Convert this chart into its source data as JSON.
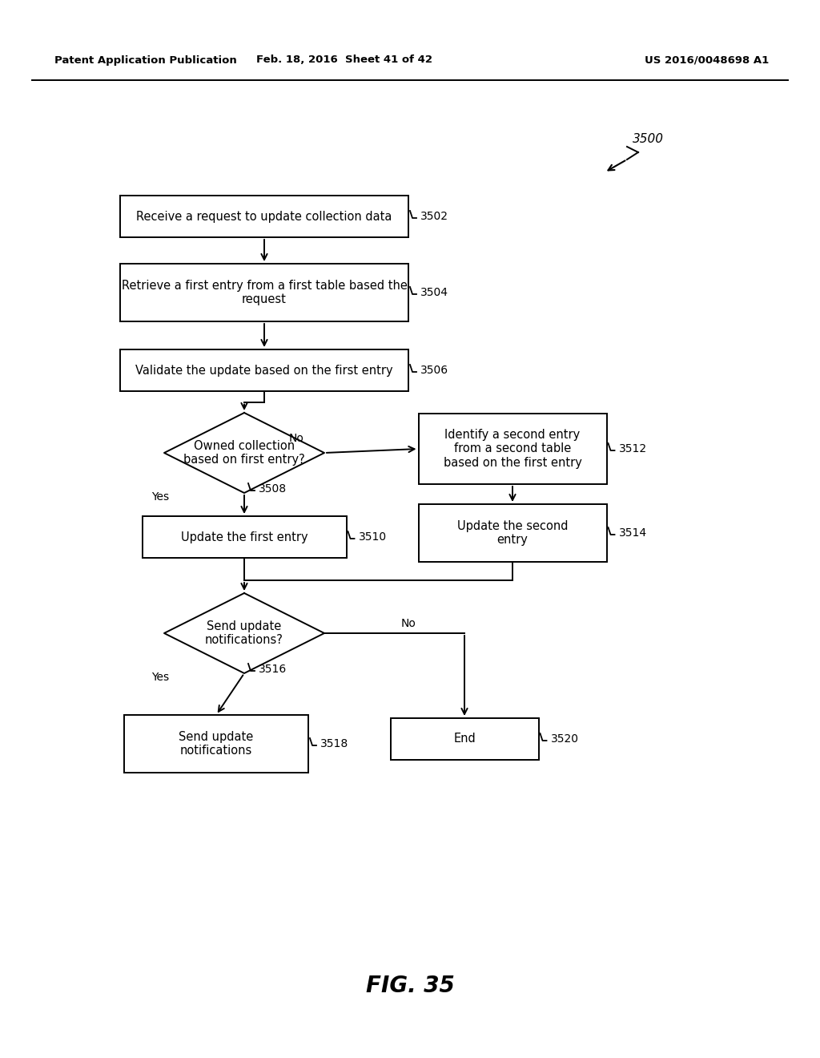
{
  "background": "#ffffff",
  "header_left": "Patent Application Publication",
  "header_mid": "Feb. 18, 2016  Sheet 41 of 42",
  "header_right": "US 2016/0048698 A1",
  "figure_label": "FIG. 35",
  "ref_number": "3500",
  "nodes": {
    "3502": {
      "text": "Receive a request to update collection data"
    },
    "3504": {
      "text": "Retrieve a first entry from a first table based the\nrequest"
    },
    "3506": {
      "text": "Validate the update based on the first entry"
    },
    "3508": {
      "text": "Owned collection\nbased on first entry?"
    },
    "3512": {
      "text": "Identify a second entry\nfrom a second table\nbased on the first entry"
    },
    "3510": {
      "text": "Update the first entry"
    },
    "3514": {
      "text": "Update the second\nentry"
    },
    "3516": {
      "text": "Send update\nnotifications?"
    },
    "3518": {
      "text": "Send update\nnotifications"
    },
    "3520": {
      "text": "End"
    }
  }
}
